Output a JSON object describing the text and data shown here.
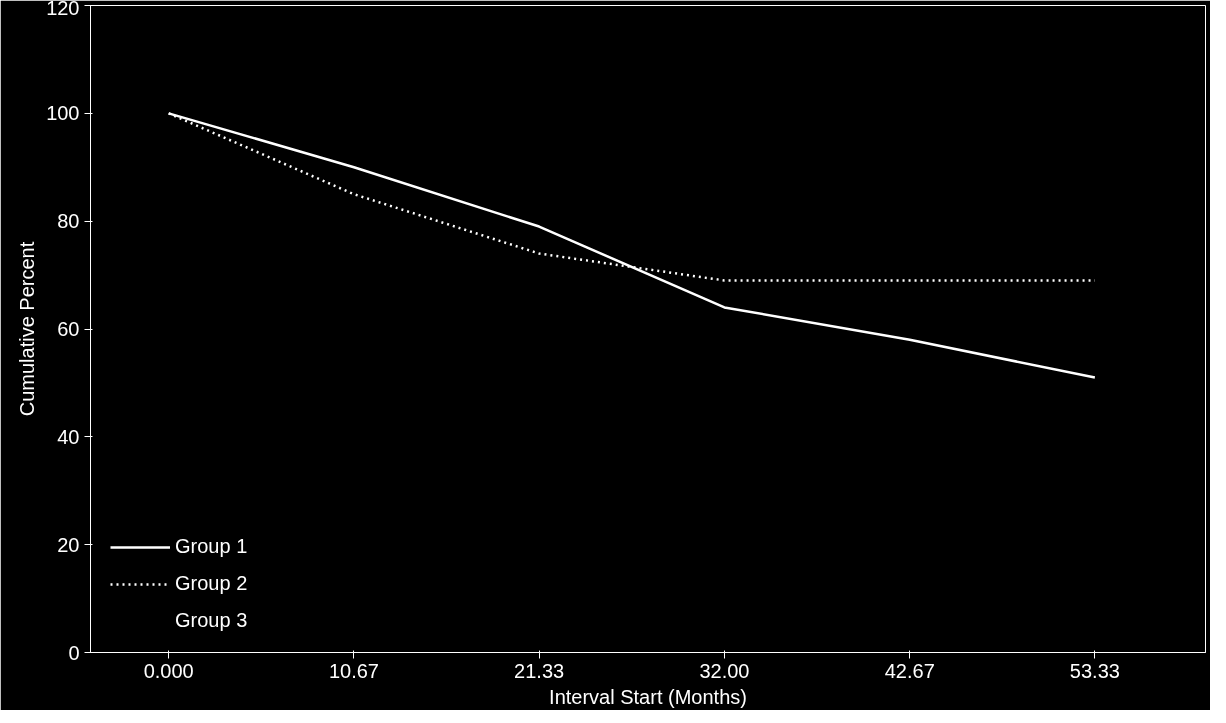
{
  "chart_data": {
    "type": "line",
    "xlabel": "Interval Start (Months)",
    "ylabel": "Cumulative Percent",
    "x": [
      0,
      10.67,
      21.33,
      32,
      42.67,
      53.33
    ],
    "series": [
      {
        "name": "Group 1",
        "color": "#ffffff",
        "line_style": "solid",
        "values": [
          100,
          90,
          79,
          64,
          58,
          51
        ]
      },
      {
        "name": "Group 2",
        "color": "#ffffff",
        "line_style": "dotted",
        "values": [
          100,
          85,
          74,
          69,
          69,
          69
        ]
      },
      {
        "name": "Group 3",
        "values": [
          null,
          null,
          null,
          null,
          null,
          null
        ]
      }
    ],
    "xlim": [
      -4.5,
      59.7
    ],
    "ylim": [
      0,
      120
    ],
    "xticks": [
      {
        "value": 0,
        "label": "0.000"
      },
      10.67,
      21.33,
      {
        "value": 32,
        "label": "32.00"
      },
      42.67,
      53.33
    ],
    "yticks": [
      0,
      20,
      40,
      60,
      80,
      100,
      120
    ],
    "grid": false,
    "legend": "bottom left",
    "marker": "none"
  }
}
